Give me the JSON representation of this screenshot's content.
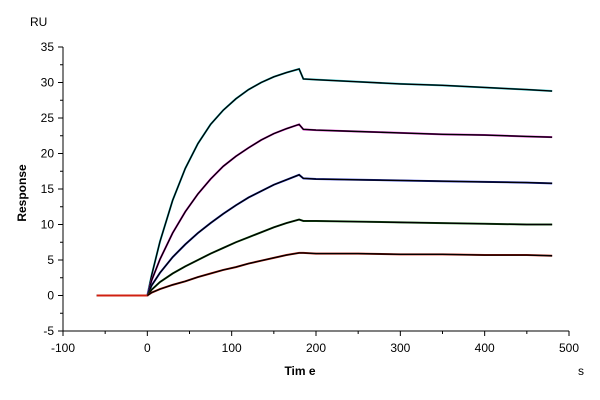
{
  "chart_data": {
    "type": "line",
    "title": "",
    "xlabel": "Tim e",
    "ylabel": "Response",
    "y_unit": "RU",
    "x_unit": "s",
    "xlim": [
      -100,
      500
    ],
    "ylim": [
      -5,
      35
    ],
    "x_ticks": [
      -100,
      0,
      100,
      200,
      300,
      400,
      500
    ],
    "y_ticks": [
      -5,
      0,
      5,
      10,
      15,
      20,
      25,
      30,
      35
    ],
    "grid": false,
    "legend": "none",
    "colors": {
      "axis": "#000000",
      "fit": "#000000",
      "cyan": "#22c4cc",
      "magenta": "#e020d0",
      "blue": "#2030d0",
      "green": "#208020",
      "red": "#d02010"
    },
    "x": [
      -60,
      -30,
      0,
      5,
      15,
      30,
      45,
      60,
      75,
      90,
      105,
      120,
      135,
      150,
      165,
      180,
      185,
      200,
      250,
      300,
      350,
      400,
      450,
      480
    ],
    "series": [
      {
        "color": "#22c4cc",
        "values": [
          0.0,
          0.0,
          0.0,
          2.8,
          7.6,
          13.4,
          17.9,
          21.4,
          24.1,
          26.1,
          27.7,
          29.0,
          30.0,
          30.8,
          31.4,
          31.9,
          30.5,
          30.4,
          30.1,
          29.8,
          29.6,
          29.3,
          29.0,
          28.8
        ]
      },
      {
        "color": "#e020d0",
        "values": [
          0.0,
          0.0,
          0.0,
          2.1,
          5.1,
          8.8,
          11.8,
          14.3,
          16.4,
          18.2,
          19.6,
          20.8,
          21.9,
          22.8,
          23.5,
          24.1,
          23.4,
          23.3,
          23.1,
          22.9,
          22.7,
          22.6,
          22.4,
          22.3
        ]
      },
      {
        "color": "#2030d0",
        "values": [
          0.0,
          0.0,
          0.0,
          1.4,
          3.2,
          5.4,
          7.2,
          8.8,
          10.2,
          11.5,
          12.7,
          13.8,
          14.7,
          15.6,
          16.3,
          17.0,
          16.5,
          16.4,
          16.3,
          16.2,
          16.1,
          16.0,
          15.9,
          15.8
        ]
      },
      {
        "color": "#208020",
        "values": [
          0.0,
          0.0,
          0.0,
          0.8,
          1.9,
          3.1,
          4.1,
          5.0,
          5.9,
          6.7,
          7.5,
          8.2,
          8.9,
          9.6,
          10.2,
          10.7,
          10.5,
          10.5,
          10.4,
          10.3,
          10.2,
          10.1,
          10.0,
          10.0
        ]
      },
      {
        "color": "#d02010",
        "values": [
          0.0,
          0.0,
          0.0,
          0.4,
          0.9,
          1.5,
          2.0,
          2.6,
          3.1,
          3.6,
          4.0,
          4.5,
          4.9,
          5.3,
          5.7,
          6.0,
          6.0,
          5.9,
          5.9,
          5.8,
          5.8,
          5.7,
          5.7,
          5.6
        ]
      }
    ]
  }
}
